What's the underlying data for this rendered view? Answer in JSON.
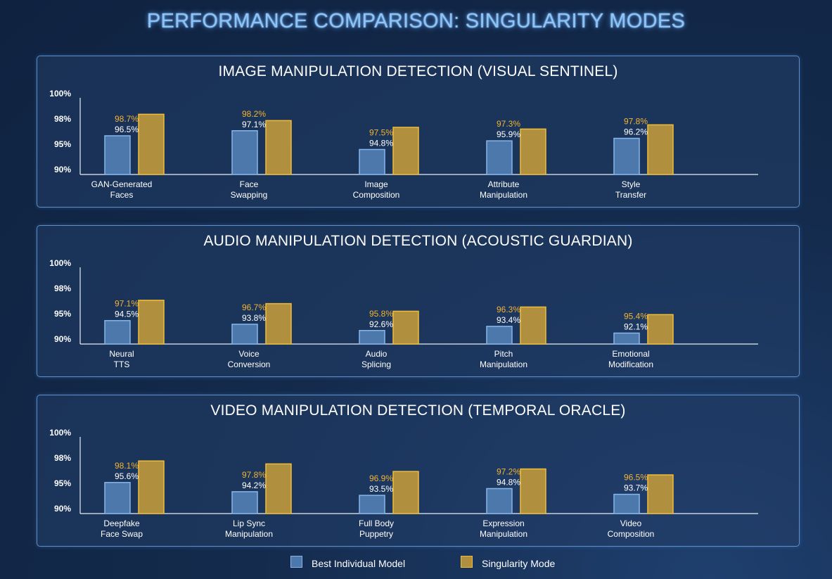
{
  "title": "PERFORMANCE COMPARISON: SINGULARITY MODES",
  "colors": {
    "individual_fill": "#4c78ab",
    "individual_stroke": "#87b6ea",
    "singularity_fill": "#b08f3e",
    "singularity_stroke": "#f0bd3a",
    "singularity_label": "#f2b434",
    "individual_label": "#ffffff"
  },
  "legend": {
    "individual": "Best Individual Model",
    "singularity": "Singularity Mode"
  },
  "chart_data": [
    {
      "type": "bar",
      "title": "IMAGE MANIPULATION DETECTION (VISUAL SENTINEL)",
      "ytick_labels": [
        "90%",
        "95%",
        "98%",
        "100%"
      ],
      "categories": [
        [
          "GAN-Generated",
          "Faces"
        ],
        [
          "Face",
          "Swapping"
        ],
        [
          "Image",
          "Composition"
        ],
        [
          "Attribute",
          "Manipulation"
        ],
        [
          "Style",
          "Transfer"
        ]
      ],
      "series": [
        {
          "name": "Best Individual Model",
          "values": [
            96.5,
            97.1,
            94.8,
            95.9,
            96.2
          ],
          "labels": [
            "96.5%",
            "97.1%",
            "94.8%",
            "95.9%",
            "96.2%"
          ]
        },
        {
          "name": "Singularity Mode",
          "values": [
            98.7,
            98.2,
            97.5,
            97.3,
            97.8
          ],
          "labels": [
            "98.7%",
            "98.2%",
            "97.5%",
            "97.3%",
            "97.8%"
          ]
        }
      ]
    },
    {
      "type": "bar",
      "title": "AUDIO MANIPULATION DETECTION (ACOUSTIC GUARDIAN)",
      "ytick_labels": [
        "90%",
        "95%",
        "98%",
        "100%"
      ],
      "categories": [
        [
          "Neural",
          "TTS"
        ],
        [
          "Voice",
          "Conversion"
        ],
        [
          "Audio",
          "Splicing"
        ],
        [
          "Pitch",
          "Manipulation"
        ],
        [
          "Emotional",
          "Modification"
        ]
      ],
      "series": [
        {
          "name": "Best Individual Model",
          "values": [
            94.5,
            93.8,
            92.6,
            93.4,
            92.1
          ],
          "labels": [
            "94.5%",
            "93.8%",
            "92.6%",
            "93.4%",
            "92.1%"
          ]
        },
        {
          "name": "Singularity Mode",
          "values": [
            97.1,
            96.7,
            95.8,
            96.3,
            95.4
          ],
          "labels": [
            "97.1%",
            "96.7%",
            "95.8%",
            "96.3%",
            "95.4%"
          ]
        }
      ]
    },
    {
      "type": "bar",
      "title": "VIDEO MANIPULATION DETECTION (TEMPORAL ORACLE)",
      "ytick_labels": [
        "90%",
        "95%",
        "98%",
        "100%"
      ],
      "categories": [
        [
          "Deepfake",
          "Face Swap"
        ],
        [
          "Lip Sync",
          "Manipulation"
        ],
        [
          "Full Body",
          "Puppetry"
        ],
        [
          "Expression",
          "Manipulation"
        ],
        [
          "Video",
          "Composition"
        ]
      ],
      "series": [
        {
          "name": "Best Individual Model",
          "values": [
            95.6,
            94.2,
            93.5,
            94.8,
            93.7
          ],
          "labels": [
            "95.6%",
            "94.2%",
            "93.5%",
            "94.8%",
            "93.7%"
          ]
        },
        {
          "name": "Singularity Mode",
          "values": [
            98.1,
            97.8,
            96.9,
            97.2,
            96.5
          ],
          "labels": [
            "98.1%",
            "97.8%",
            "96.9%",
            "97.2%",
            "96.5%"
          ]
        }
      ]
    }
  ]
}
